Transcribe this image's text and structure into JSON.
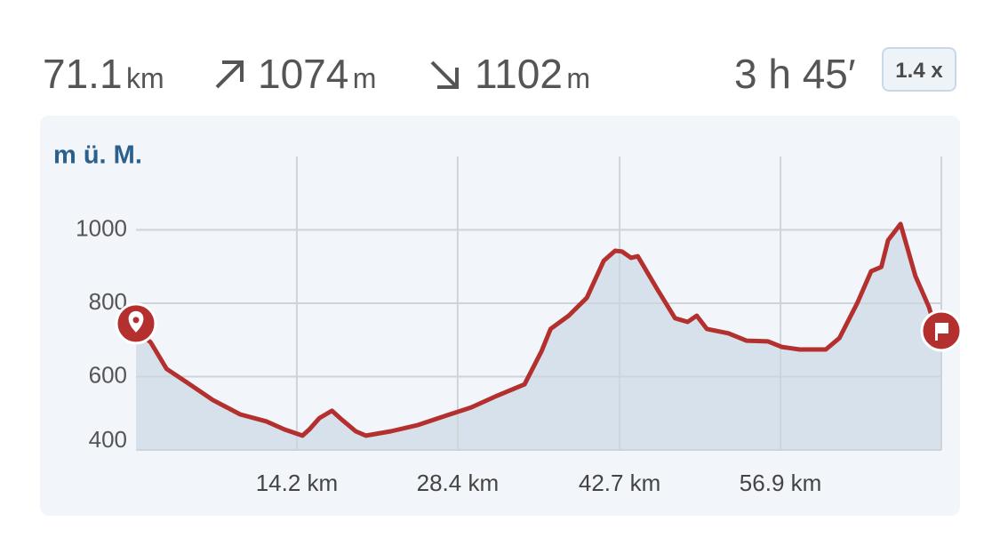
{
  "stats": {
    "distance": "71.1",
    "distance_unit": "km",
    "ascent": "1074",
    "ascent_unit": "m",
    "descent": "1102",
    "descent_unit": "m",
    "duration": "3 h 45′",
    "speed_factor": "1.4 x"
  },
  "chart_data": {
    "type": "area",
    "y_label": "m ü. M.",
    "x": [
      0,
      1.3,
      2.7,
      4.5,
      6.8,
      9.2,
      11.5,
      13.1,
      14.7,
      15.3,
      16.2,
      17.3,
      18.2,
      19.4,
      20.3,
      22.5,
      24.9,
      27.2,
      29.6,
      31.9,
      34.3,
      35.8,
      36.6,
      38.2,
      39.8,
      41.3,
      42.3,
      42.9,
      43.7,
      44.3,
      46.0,
      47.6,
      48.7,
      49.5,
      50.4,
      52.3,
      53.9,
      55.8,
      57.0,
      58.6,
      60.9,
      62.1,
      63.7,
      64.9,
      65.8,
      66.4,
      67.5,
      68.8,
      70.0,
      70.6,
      71.1
    ],
    "values": [
      730,
      693,
      621,
      584,
      536,
      497,
      478,
      456,
      439,
      456,
      487,
      507,
      482,
      451,
      439,
      451,
      468,
      492,
      516,
      548,
      579,
      669,
      730,
      766,
      815,
      916,
      943,
      941,
      924,
      928,
      839,
      759,
      749,
      766,
      730,
      718,
      698,
      696,
      681,
      674,
      674,
      705,
      802,
      887,
      899,
      972,
      1016,
      875,
      790,
      730,
      725
    ],
    "color": "#b3302f",
    "fill_color": "#d7e1eb",
    "xlim": [
      0,
      71.1
    ],
    "xticks": [
      {
        "value": 14.2,
        "label": "14.2 km"
      },
      {
        "value": 28.4,
        "label": "28.4 km"
      },
      {
        "value": 42.7,
        "label": "42.7 km"
      },
      {
        "value": 56.9,
        "label": "56.9 km"
      }
    ],
    "ylim": [
      400,
      1200
    ],
    "yticks": [
      400,
      600,
      800,
      1000
    ],
    "grid": true
  }
}
